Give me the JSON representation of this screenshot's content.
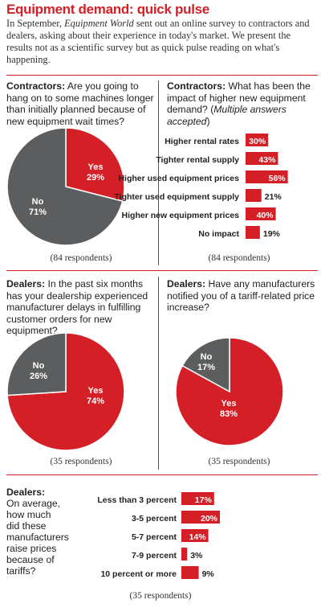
{
  "header": {
    "title": "Equipment demand: quick pulse",
    "intro_1": "In September, ",
    "intro_em": "Equipment World",
    "intro_2": " sent out an online survey to contractors and dealers, asking about their experience in today's market. We present the results not as a scientific survey but as quick pulse reading on what's happening."
  },
  "colors": {
    "red": "#d51f26",
    "gray": "#5b5d5e"
  },
  "panels": {
    "contractors_hang_on": {
      "lead": "Contractors:",
      "question": " Are you going to hang on to some machines longer than initially planned because of new equipment wait times?",
      "respondents": "(84 respondents)"
    },
    "contractors_impact": {
      "lead": "Contractors:",
      "question": " What has been the impact of higher new equipment demand? (",
      "question_em": "Multiple answers accepted",
      "question_end": ")",
      "respondents": "(84 respondents)"
    },
    "dealers_delays": {
      "lead": "Dealers:",
      "question": " In the past six months has your dealership experienced manufacturer delays in fulfilling customer orders for new equipment?",
      "respondents": "(35 respondents)"
    },
    "dealers_tariff": {
      "lead": "Dealers:",
      "question": " Have any manufacturers notified you of a tariff-related price increase?",
      "respondents": "(35 respondents)"
    },
    "dealers_raise": {
      "lead": "Dealers:",
      "question": "On average, how much did these manufacturers raise prices because of tariffs?",
      "respondents": "(35 respondents)"
    }
  },
  "chart_data": [
    {
      "type": "pie",
      "categories": [
        "Yes",
        "No"
      ],
      "values": [
        29,
        71
      ],
      "labels": [
        "Yes\n29%",
        "No\n71%"
      ]
    },
    {
      "type": "bar",
      "categories": [
        "Higher rental rates",
        "Tighter rental supply",
        "Higher used equipment prices",
        "Tighter used equipment supply",
        "Higher new equipment prices",
        "No impact"
      ],
      "values": [
        30,
        43,
        56,
        21,
        40,
        19
      ],
      "labels": [
        "30%",
        "43%",
        "56%",
        "21%",
        "40%",
        "19%"
      ]
    },
    {
      "type": "pie",
      "categories": [
        "Yes",
        "No"
      ],
      "values": [
        74,
        26
      ],
      "labels": [
        "Yes\n74%",
        "No\n26%"
      ]
    },
    {
      "type": "pie",
      "categories": [
        "Yes",
        "No"
      ],
      "values": [
        83,
        17
      ],
      "labels": [
        "Yes\n83%",
        "No\n17%"
      ]
    },
    {
      "type": "bar",
      "categories": [
        "Less than 3 percent",
        "3-5 percent",
        "5-7 percent",
        "7-9 percent",
        "10 percent or more"
      ],
      "values": [
        17,
        20,
        14,
        3,
        9
      ],
      "labels": [
        "17%",
        "20%",
        "14%",
        "3%",
        "9%"
      ]
    }
  ]
}
